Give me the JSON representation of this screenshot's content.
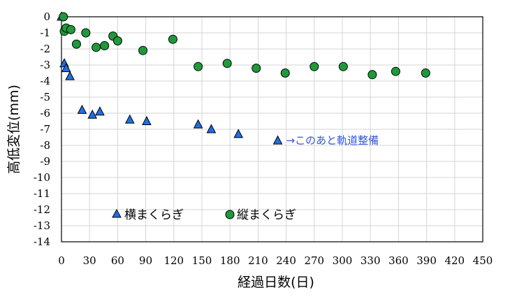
{
  "chart_data": {
    "type": "scatter",
    "title": "",
    "xlabel": "経過日数(日)",
    "ylabel": "高低変位(mm)",
    "xlim": [
      0,
      450
    ],
    "ylim": [
      -14,
      0
    ],
    "x_ticks": [
      "0",
      "30",
      "60",
      "90",
      "120",
      "150",
      "180",
      "210",
      "240",
      "270",
      "300",
      "330",
      "360",
      "390",
      "420",
      "450"
    ],
    "y_ticks": [
      "0",
      "-1",
      "-2",
      "-3",
      "-4",
      "-5",
      "-6",
      "-7",
      "-8",
      "-9",
      "-10",
      "-11",
      "-12",
      "-13",
      "-14"
    ],
    "grid": true,
    "legend_position": "bottom-center",
    "series": [
      {
        "name": "横まくらぎ",
        "marker": "triangle",
        "color": "#1e6fe6",
        "points": [
          [
            0,
            0
          ],
          [
            3,
            -2.9
          ],
          [
            5,
            -3.2
          ],
          [
            9,
            -3.7
          ],
          [
            22,
            -5.8
          ],
          [
            33,
            -6.1
          ],
          [
            41,
            -5.9
          ],
          [
            73,
            -6.4
          ],
          [
            91,
            -6.5
          ],
          [
            146,
            -6.7
          ],
          [
            160,
            -7.0
          ],
          [
            189,
            -7.3
          ],
          [
            231,
            -7.7
          ]
        ]
      },
      {
        "name": "縦まくらぎ",
        "marker": "circle",
        "color": "#1f9a3a",
        "points": [
          [
            2,
            0
          ],
          [
            3,
            -0.9
          ],
          [
            5,
            -0.7
          ],
          [
            10,
            -0.8
          ],
          [
            16,
            -1.7
          ],
          [
            26,
            -1.0
          ],
          [
            37,
            -1.9
          ],
          [
            46,
            -1.8
          ],
          [
            55,
            -1.2
          ],
          [
            60,
            -1.5
          ],
          [
            87,
            -2.1
          ],
          [
            119,
            -1.4
          ],
          [
            146,
            -3.1
          ],
          [
            177,
            -2.9
          ],
          [
            208,
            -3.2
          ],
          [
            239,
            -3.5
          ],
          [
            270,
            -3.1
          ],
          [
            301,
            -3.1
          ],
          [
            332,
            -3.6
          ],
          [
            357,
            -3.4
          ],
          [
            389,
            -3.5
          ]
        ]
      }
    ],
    "annotation": {
      "text": "→このあと軌道整備",
      "x": 231,
      "y": -7.7
    }
  }
}
